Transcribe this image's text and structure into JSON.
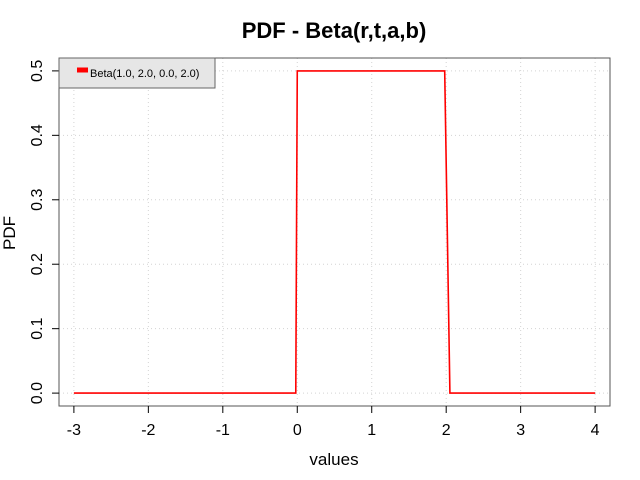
{
  "chart_data": {
    "type": "line",
    "title": "PDF - Beta(r,t,a,b)",
    "xlabel": "values",
    "ylabel": "PDF",
    "xlim": [
      -3.2,
      4.2
    ],
    "ylim": [
      -0.02,
      0.52
    ],
    "xticks": [
      -3,
      -2,
      -1,
      0,
      1,
      2,
      3,
      4
    ],
    "xtick_labels": [
      "-3",
      "-2",
      "-1",
      "0",
      "1",
      "2",
      "3",
      "4"
    ],
    "yticks": [
      0.0,
      0.1,
      0.2,
      0.3,
      0.4,
      0.5
    ],
    "ytick_labels": [
      "0.0",
      "0.1",
      "0.2",
      "0.3",
      "0.4",
      "0.5"
    ],
    "grid": true,
    "legend_position": "top-left",
    "series": [
      {
        "name": "Beta(1.0, 2.0, 0.0, 2.0)",
        "color": "#ff0000",
        "x": [
          -3,
          -0.02,
          0.0,
          1.98,
          2.05,
          4
        ],
        "y": [
          0.0,
          0.0,
          0.5,
          0.5,
          0.0,
          0.0
        ]
      }
    ]
  }
}
